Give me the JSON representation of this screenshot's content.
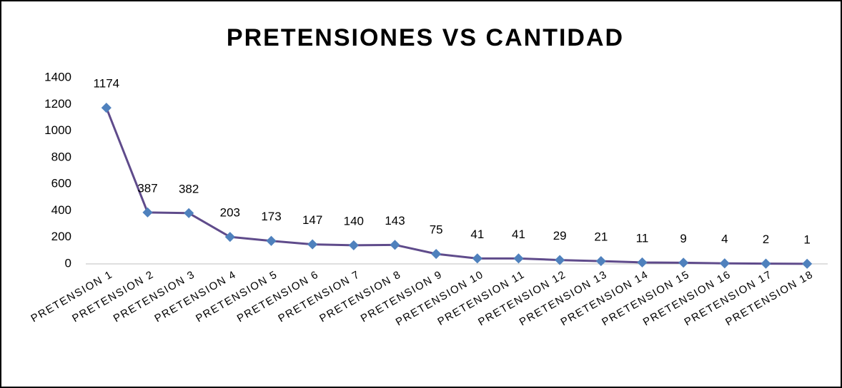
{
  "chart_data": {
    "type": "line",
    "title": "PRETENSIONES VS CANTIDAD",
    "categories": [
      "PRETENSION 1",
      "PRETENSION 2",
      "PRETENSION 3",
      "PRETENSION 4",
      "PRETENSION 5",
      "PRETENSION 6",
      "PRETENSION 7",
      "PRETENSION 8",
      "PRETENSION 9",
      "PRETENSION 10",
      "PRETENSION 11",
      "PRETENSION 12",
      "PRETENSION 13",
      "PRETENSION 14",
      "PRETENSION 15",
      "PRETENSION 16",
      "PRETENSION 17",
      "PRETENSION 18"
    ],
    "values": [
      1174,
      387,
      382,
      203,
      173,
      147,
      140,
      143,
      75,
      41,
      41,
      29,
      21,
      11,
      9,
      4,
      2,
      1
    ],
    "color": "#5f4b8b",
    "marker_color": "#4f81bd",
    "ylim": [
      0,
      1400
    ],
    "yticks": [
      0,
      200,
      400,
      600,
      800,
      1000,
      1200,
      1400
    ],
    "grid": false
  }
}
